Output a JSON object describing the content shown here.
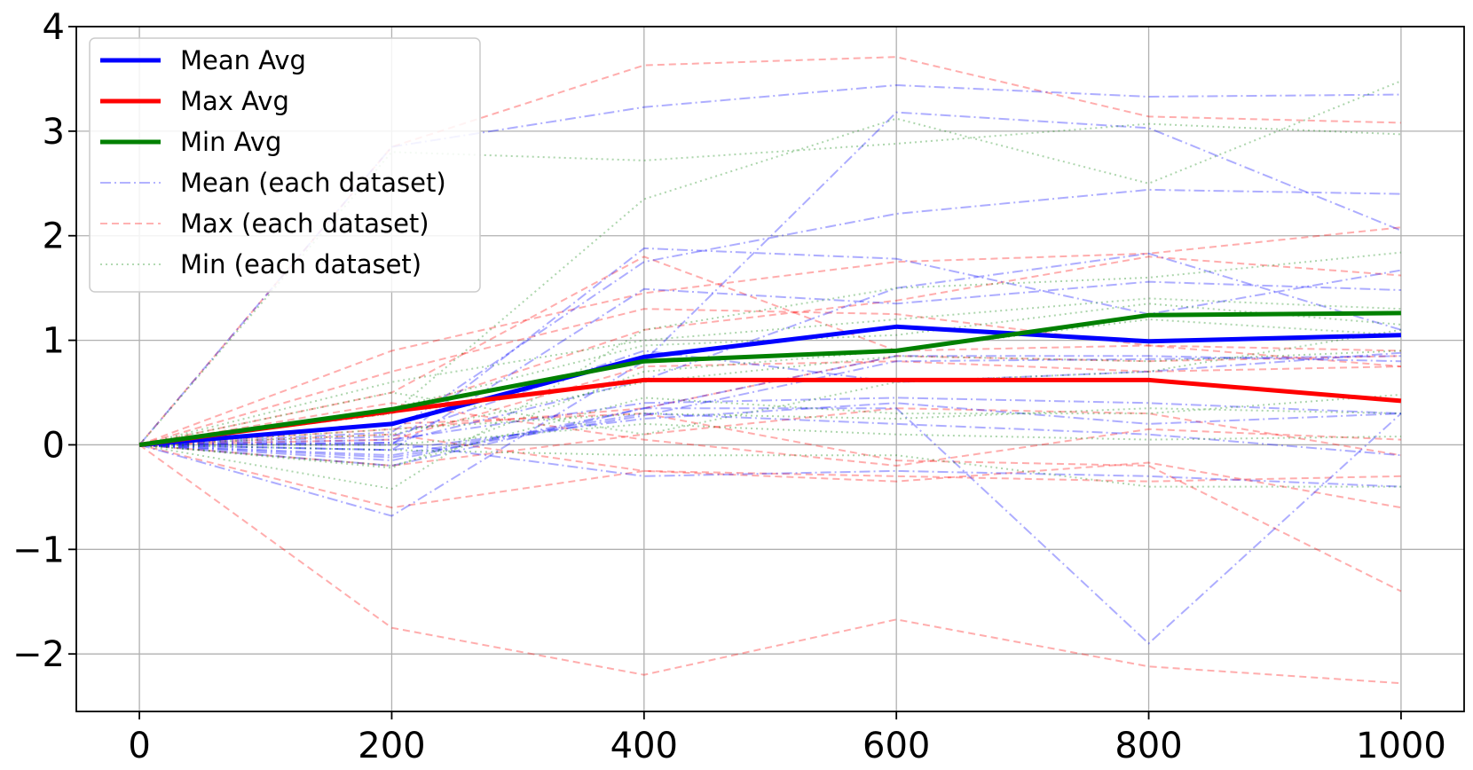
{
  "chart_data": {
    "type": "line",
    "title": "",
    "xlabel": "",
    "ylabel": "",
    "x": [
      0,
      200,
      400,
      600,
      800,
      1000
    ],
    "xlim": [
      -50,
      1050
    ],
    "ylim": [
      -2.55,
      4.0
    ],
    "xticks": [
      0,
      200,
      400,
      600,
      800,
      1000
    ],
    "xtick_labels": [
      "0",
      "200",
      "400",
      "600",
      "800",
      "1000"
    ],
    "yticks": [
      -2,
      -1,
      0,
      1,
      2,
      3,
      4
    ],
    "ytick_labels": [
      "−2",
      "−1",
      "0",
      "1",
      "2",
      "3",
      "4"
    ],
    "grid": true,
    "legend_position": "top-left",
    "legend": [
      {
        "label": "Mean Avg",
        "color": "#0000ff",
        "style": "solid"
      },
      {
        "label": "Max Avg",
        "color": "#ff0000",
        "style": "solid"
      },
      {
        "label": "Min Avg",
        "color": "#008000",
        "style": "solid"
      },
      {
        "label": "Mean (each dataset)",
        "color": "#0000ff",
        "style": "dashdot"
      },
      {
        "label": "Max (each dataset)",
        "color": "#ff0000",
        "style": "dashed"
      },
      {
        "label": "Min (each dataset)",
        "color": "#008000",
        "style": "dotted"
      }
    ],
    "series": [
      {
        "name": "Mean Avg",
        "values": [
          0,
          0.2,
          0.84,
          1.13,
          0.99,
          1.05
        ]
      },
      {
        "name": "Max Avg",
        "values": [
          0,
          0.32,
          0.62,
          0.62,
          0.62,
          0.42
        ]
      },
      {
        "name": "Min Avg",
        "values": [
          0,
          0.34,
          0.8,
          0.9,
          1.24,
          1.26
        ]
      }
    ],
    "per_dataset": {
      "mean": [
        [
          0,
          2.85,
          3.23,
          3.44,
          3.33,
          3.35
        ],
        [
          0,
          -0.68,
          0.8,
          3.18,
          3.03,
          2.05
        ],
        [
          0,
          0.0,
          1.88,
          1.78,
          1.25,
          1.67
        ],
        [
          0,
          0.12,
          1.75,
          2.21,
          2.44,
          2.4
        ],
        [
          0,
          -0.05,
          1.49,
          1.35,
          1.56,
          1.48
        ],
        [
          0,
          0.02,
          0.62,
          1.5,
          1.83,
          1.1
        ],
        [
          0,
          -0.2,
          0.35,
          0.85,
          0.85,
          0.8
        ],
        [
          0,
          0.05,
          0.4,
          0.45,
          0.4,
          0.3
        ],
        [
          0,
          -0.1,
          0.3,
          0.2,
          0.1,
          -0.1
        ],
        [
          0,
          -0.15,
          0.35,
          0.35,
          -1.9,
          0.3
        ],
        [
          0,
          0.02,
          -0.3,
          -0.25,
          -0.3,
          -0.4
        ],
        [
          0,
          -0.12,
          0.28,
          0.8,
          0.82,
          0.85
        ],
        [
          0,
          0.08,
          0.9,
          0.6,
          0.7,
          0.88
        ],
        [
          0,
          -0.05,
          0.25,
          0.4,
          0.2,
          0.3
        ]
      ],
      "max": [
        [
          0,
          2.85,
          3.63,
          3.71,
          3.14,
          3.08
        ],
        [
          0,
          0.9,
          1.45,
          1.75,
          1.83,
          2.08
        ],
        [
          0,
          0.5,
          1.8,
          0.9,
          0.95,
          0.75
        ],
        [
          0,
          -1.75,
          -2.2,
          -1.67,
          -2.12,
          -2.28
        ],
        [
          0,
          0.3,
          1.1,
          1.38,
          1.8,
          1.62
        ],
        [
          0,
          0.15,
          0.35,
          0.85,
          0.8,
          0.85
        ],
        [
          0,
          -0.6,
          -0.25,
          -0.35,
          -0.17,
          -0.6
        ],
        [
          0,
          0.2,
          0.3,
          -0.15,
          -0.2,
          -1.4
        ],
        [
          0,
          -0.2,
          0.1,
          0.35,
          0.3,
          -0.1
        ],
        [
          0,
          0.05,
          0.75,
          0.8,
          0.7,
          0.75
        ],
        [
          0,
          0.1,
          -0.25,
          -0.3,
          -0.35,
          -0.3
        ],
        [
          0,
          0.4,
          0.05,
          -0.2,
          0.15,
          0.05
        ],
        [
          0,
          0.7,
          1.3,
          1.25,
          0.95,
          0.9
        ]
      ],
      "min": [
        [
          0,
          2.8,
          2.72,
          2.88,
          3.07,
          2.97
        ],
        [
          0,
          0.3,
          2.35,
          3.12,
          2.5,
          3.48
        ],
        [
          0,
          -0.42,
          1.1,
          1.5,
          1.6,
          1.84
        ],
        [
          0,
          0.6,
          1.0,
          1.2,
          1.4,
          1.3
        ],
        [
          0,
          0.1,
          0.6,
          0.85,
          0.8,
          0.9
        ],
        [
          0,
          -0.2,
          0.45,
          0.3,
          0.3,
          0.48
        ],
        [
          0,
          0.15,
          0.3,
          0.25,
          0.35,
          0.3
        ],
        [
          0,
          -0.05,
          -0.1,
          -0.1,
          -0.4,
          -0.4
        ],
        [
          0,
          0.5,
          0.1,
          0.6,
          0.7,
          1.1
        ],
        [
          0,
          -0.22,
          0.7,
          0.9,
          1.2,
          1.05
        ],
        [
          0,
          0.35,
          0.95,
          1.05,
          1.35,
          1.15
        ],
        [
          0,
          0.0,
          0.2,
          0.1,
          0.05,
          0.08
        ]
      ]
    }
  }
}
